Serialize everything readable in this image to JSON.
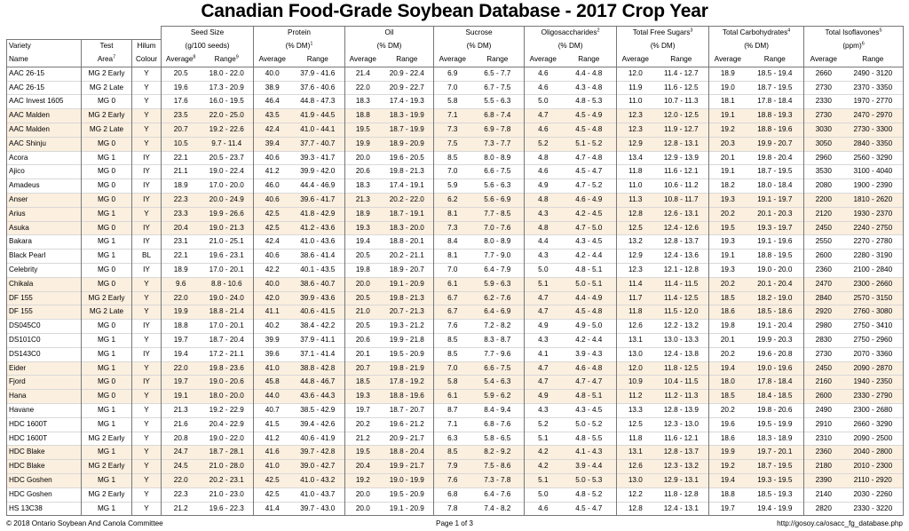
{
  "title": "Canadian Food-Grade Soybean Database - 2017 Crop Year",
  "headers": {
    "variety_1": "Variety",
    "variety_2": "Name",
    "test_1": "Test",
    "test_2": "Area",
    "test_sup": "7",
    "hilum_1": "Hilum",
    "hilum_2": "Colour",
    "groups": [
      {
        "name": "Seed Size",
        "sup": "",
        "unit": "(g/100 seeds)",
        "unit_sup": ""
      },
      {
        "name": "Protein",
        "sup": "",
        "unit": "(% DM)",
        "unit_sup": "1"
      },
      {
        "name": "Oil",
        "sup": "",
        "unit": "(% DM)",
        "unit_sup": ""
      },
      {
        "name": "Sucrose",
        "sup": "",
        "unit": "(% DM)",
        "unit_sup": ""
      },
      {
        "name": "Oligosaccharides",
        "sup": "2",
        "unit": "(% DM)",
        "unit_sup": ""
      },
      {
        "name": "Total Free Sugars",
        "sup": "3",
        "unit": "(% DM)",
        "unit_sup": ""
      },
      {
        "name": "Total Carbohydrates",
        "sup": "4",
        "unit": "(% DM)",
        "unit_sup": ""
      },
      {
        "name": "Total Isoflavones",
        "sup": "5",
        "unit": "(ppm)",
        "unit_sup": "6"
      }
    ],
    "sub": [
      {
        "avg": "Average",
        "avg_sup": "8",
        "range": "Range",
        "range_sup": "9"
      },
      {
        "avg": "Average",
        "avg_sup": "",
        "range": "Range",
        "range_sup": ""
      },
      {
        "avg": "Average",
        "avg_sup": "",
        "range": "Range",
        "range_sup": ""
      },
      {
        "avg": "Average",
        "avg_sup": "",
        "range": "Range",
        "range_sup": ""
      },
      {
        "avg": "Average",
        "avg_sup": "",
        "range": "Range",
        "range_sup": ""
      },
      {
        "avg": "Average",
        "avg_sup": "",
        "range": "Range",
        "range_sup": ""
      },
      {
        "avg": "Average",
        "avg_sup": "",
        "range": "Range",
        "range_sup": ""
      },
      {
        "avg": "Average",
        "avg_sup": "",
        "range": "Range",
        "range_sup": ""
      }
    ]
  },
  "rows": [
    {
      "hl": false,
      "c": [
        "AAC 26-15",
        "MG 2 Early",
        "Y",
        "20.5",
        "18.0 - 22.0",
        "40.0",
        "37.9 - 41.6",
        "21.4",
        "20.9 - 22.4",
        "6.9",
        "6.5 - 7.7",
        "4.6",
        "4.4 - 4.8",
        "12.0",
        "11.4 - 12.7",
        "18.9",
        "18.5 - 19.4",
        "2660",
        "2490 - 3120"
      ]
    },
    {
      "hl": false,
      "c": [
        "AAC 26-15",
        "MG 2 Late",
        "Y",
        "19.6",
        "17.3 - 20.9",
        "38.9",
        "37.6 - 40.6",
        "22.0",
        "20.9 - 22.7",
        "7.0",
        "6.7 - 7.5",
        "4.6",
        "4.3 - 4.8",
        "11.9",
        "11.6 - 12.5",
        "19.0",
        "18.7 - 19.5",
        "2730",
        "2370 - 3350"
      ]
    },
    {
      "hl": false,
      "c": [
        "AAC Invest 1605",
        "MG 0",
        "Y",
        "17.6",
        "16.0 - 19.5",
        "46.4",
        "44.8 - 47.3",
        "18.3",
        "17.4 - 19.3",
        "5.8",
        "5.5 - 6.3",
        "5.0",
        "4.8 - 5.3",
        "11.0",
        "10.7 - 11.3",
        "18.1",
        "17.8 - 18.4",
        "2330",
        "1970 - 2770"
      ]
    },
    {
      "hl": true,
      "c": [
        "AAC Malden",
        "MG 2 Early",
        "Y",
        "23.5",
        "22.0 - 25.0",
        "43.5",
        "41.9 - 44.5",
        "18.8",
        "18.3 - 19.9",
        "7.1",
        "6.8 - 7.4",
        "4.7",
        "4.5 - 4.9",
        "12.3",
        "12.0 - 12.5",
        "19.1",
        "18.8 - 19.3",
        "2730",
        "2470 - 2970"
      ]
    },
    {
      "hl": true,
      "c": [
        "AAC Malden",
        "MG 2 Late",
        "Y",
        "20.7",
        "19.2 - 22.6",
        "42.4",
        "41.0 - 44.1",
        "19.5",
        "18.7 - 19.9",
        "7.3",
        "6.9 - 7.8",
        "4.6",
        "4.5 - 4.8",
        "12.3",
        "11.9 - 12.7",
        "19.2",
        "18.8 - 19.6",
        "3030",
        "2730 - 3300"
      ]
    },
    {
      "hl": true,
      "c": [
        "AAC Shinju",
        "MG 0",
        "Y",
        "10.5",
        "9.7 - 11.4",
        "39.4",
        "37.7 - 40.7",
        "19.9",
        "18.9 - 20.9",
        "7.5",
        "7.3 - 7.7",
        "5.2",
        "5.1 - 5.2",
        "12.9",
        "12.8 - 13.1",
        "20.3",
        "19.9 - 20.7",
        "3050",
        "2840 - 3350"
      ]
    },
    {
      "hl": false,
      "c": [
        "Acora",
        "MG 1",
        "IY",
        "22.1",
        "20.5 - 23.7",
        "40.6",
        "39.3 - 41.7",
        "20.0",
        "19.6 - 20.5",
        "8.5",
        "8.0 - 8.9",
        "4.8",
        "4.7 - 4.8",
        "13.4",
        "12.9 - 13.9",
        "20.1",
        "19.8 - 20.4",
        "2960",
        "2560 - 3290"
      ]
    },
    {
      "hl": false,
      "c": [
        "Ajico",
        "MG 0",
        "IY",
        "21.1",
        "19.0 - 22.4",
        "41.2",
        "39.9 - 42.0",
        "20.6",
        "19.8 - 21.3",
        "7.0",
        "6.6 - 7.5",
        "4.6",
        "4.5 - 4.7",
        "11.8",
        "11.6 - 12.1",
        "19.1",
        "18.7 - 19.5",
        "3530",
        "3100 - 4040"
      ]
    },
    {
      "hl": false,
      "c": [
        "Amadeus",
        "MG 0",
        "IY",
        "18.9",
        "17.0 - 20.0",
        "46.0",
        "44.4 - 46.9",
        "18.3",
        "17.4 - 19.1",
        "5.9",
        "5.6 - 6.3",
        "4.9",
        "4.7 - 5.2",
        "11.0",
        "10.6 - 11.2",
        "18.2",
        "18.0 - 18.4",
        "2080",
        "1900 - 2390"
      ]
    },
    {
      "hl": true,
      "c": [
        "Anser",
        "MG 0",
        "IY",
        "22.3",
        "20.0 - 24.9",
        "40.6",
        "39.6 - 41.7",
        "21.3",
        "20.2 - 22.0",
        "6.2",
        "5.6 - 6.9",
        "4.8",
        "4.6 - 4.9",
        "11.3",
        "10.8 - 11.7",
        "19.3",
        "19.1 - 19.7",
        "2200",
        "1810 - 2620"
      ]
    },
    {
      "hl": true,
      "c": [
        "Arius",
        "MG 1",
        "Y",
        "23.3",
        "19.9 - 26.6",
        "42.5",
        "41.8 - 42.9",
        "18.9",
        "18.7 - 19.1",
        "8.1",
        "7.7 - 8.5",
        "4.3",
        "4.2 - 4.5",
        "12.8",
        "12.6 - 13.1",
        "20.2",
        "20.1 - 20.3",
        "2120",
        "1930 - 2370"
      ]
    },
    {
      "hl": true,
      "c": [
        "Asuka",
        "MG 0",
        "IY",
        "20.4",
        "19.0 - 21.3",
        "42.5",
        "41.2 - 43.6",
        "19.3",
        "18.3 - 20.0",
        "7.3",
        "7.0 - 7.6",
        "4.8",
        "4.7 - 5.0",
        "12.5",
        "12.4 - 12.6",
        "19.5",
        "19.3 - 19.7",
        "2450",
        "2240 - 2750"
      ]
    },
    {
      "hl": false,
      "c": [
        "Bakara",
        "MG 1",
        "IY",
        "23.1",
        "21.0 - 25.1",
        "42.4",
        "41.0 - 43.6",
        "19.4",
        "18.8 - 20.1",
        "8.4",
        "8.0 - 8.9",
        "4.4",
        "4.3 - 4.5",
        "13.2",
        "12.8 - 13.7",
        "19.3",
        "19.1 - 19.6",
        "2550",
        "2270 - 2780"
      ]
    },
    {
      "hl": false,
      "c": [
        "Black Pearl",
        "MG 1",
        "BL",
        "22.1",
        "19.6 - 23.1",
        "40.6",
        "38.6 - 41.4",
        "20.5",
        "20.2 - 21.1",
        "8.1",
        "7.7 - 9.0",
        "4.3",
        "4.2 - 4.4",
        "12.9",
        "12.4 - 13.6",
        "19.1",
        "18.8 - 19.5",
        "2600",
        "2280 - 3190"
      ]
    },
    {
      "hl": false,
      "c": [
        "Celebrity",
        "MG 0",
        "IY",
        "18.9",
        "17.0 - 20.1",
        "42.2",
        "40.1 - 43.5",
        "19.8",
        "18.9 - 20.7",
        "7.0",
        "6.4 - 7.9",
        "5.0",
        "4.8 - 5.1",
        "12.3",
        "12.1 - 12.8",
        "19.3",
        "19.0 - 20.0",
        "2360",
        "2100 - 2840"
      ]
    },
    {
      "hl": true,
      "c": [
        "Chikala",
        "MG 0",
        "Y",
        "9.6",
        "8.8 - 10.6",
        "40.0",
        "38.6 - 40.7",
        "20.0",
        "19.1 - 20.9",
        "6.1",
        "5.9 - 6.3",
        "5.1",
        "5.0 - 5.1",
        "11.4",
        "11.4 - 11.5",
        "20.2",
        "20.1 - 20.4",
        "2470",
        "2300 - 2660"
      ]
    },
    {
      "hl": true,
      "c": [
        "DF 155",
        "MG 2 Early",
        "Y",
        "22.0",
        "19.0 - 24.0",
        "42.0",
        "39.9 - 43.6",
        "20.5",
        "19.8 - 21.3",
        "6.7",
        "6.2 - 7.6",
        "4.7",
        "4.4 - 4.9",
        "11.7",
        "11.4 - 12.5",
        "18.5",
        "18.2 - 19.0",
        "2840",
        "2570 - 3150"
      ]
    },
    {
      "hl": true,
      "c": [
        "DF 155",
        "MG 2 Late",
        "Y",
        "19.9",
        "18.8 - 21.4",
        "41.1",
        "40.6 - 41.5",
        "21.0",
        "20.7 - 21.3",
        "6.7",
        "6.4 - 6.9",
        "4.7",
        "4.5 - 4.8",
        "11.8",
        "11.5 - 12.0",
        "18.6",
        "18.5 - 18.6",
        "2920",
        "2760 - 3080"
      ]
    },
    {
      "hl": false,
      "c": [
        "DS045C0",
        "MG 0",
        "IY",
        "18.8",
        "17.0 - 20.1",
        "40.2",
        "38.4 - 42.2",
        "20.5",
        "19.3 - 21.2",
        "7.6",
        "7.2 - 8.2",
        "4.9",
        "4.9 - 5.0",
        "12.6",
        "12.2 - 13.2",
        "19.8",
        "19.1 - 20.4",
        "2980",
        "2750 - 3410"
      ]
    },
    {
      "hl": false,
      "c": [
        "DS101C0",
        "MG 1",
        "Y",
        "19.7",
        "18.7 - 20.4",
        "39.9",
        "37.9 - 41.1",
        "20.6",
        "19.9 - 21.8",
        "8.5",
        "8.3 - 8.7",
        "4.3",
        "4.2 - 4.4",
        "13.1",
        "13.0 - 13.3",
        "20.1",
        "19.9 - 20.3",
        "2830",
        "2750 - 2960"
      ]
    },
    {
      "hl": false,
      "c": [
        "DS143C0",
        "MG 1",
        "IY",
        "19.4",
        "17.2 - 21.1",
        "39.6",
        "37.1 - 41.4",
        "20.1",
        "19.5 - 20.9",
        "8.5",
        "7.7 - 9.6",
        "4.1",
        "3.9 - 4.3",
        "13.0",
        "12.4 - 13.8",
        "20.2",
        "19.6 - 20.8",
        "2730",
        "2070 - 3360"
      ]
    },
    {
      "hl": true,
      "c": [
        "Eider",
        "MG 1",
        "Y",
        "22.0",
        "19.8 - 23.6",
        "41.0",
        "38.8 - 42.8",
        "20.7",
        "19.8 - 21.9",
        "7.0",
        "6.6 - 7.5",
        "4.7",
        "4.6 - 4.8",
        "12.0",
        "11.8 - 12.5",
        "19.4",
        "19.0 - 19.6",
        "2450",
        "2090 - 2870"
      ]
    },
    {
      "hl": true,
      "c": [
        "Fjord",
        "MG 0",
        "IY",
        "19.7",
        "19.0 - 20.6",
        "45.8",
        "44.8 - 46.7",
        "18.5",
        "17.8 - 19.2",
        "5.8",
        "5.4 - 6.3",
        "4.7",
        "4.7 - 4.7",
        "10.9",
        "10.4 - 11.5",
        "18.0",
        "17.8 - 18.4",
        "2160",
        "1940 - 2350"
      ]
    },
    {
      "hl": true,
      "c": [
        "Hana",
        "MG 0",
        "Y",
        "19.1",
        "18.0 - 20.0",
        "44.0",
        "43.6 - 44.3",
        "19.3",
        "18.8 - 19.6",
        "6.1",
        "5.9 - 6.2",
        "4.9",
        "4.8 - 5.1",
        "11.2",
        "11.2 - 11.3",
        "18.5",
        "18.4 - 18.5",
        "2600",
        "2330 - 2790"
      ]
    },
    {
      "hl": false,
      "c": [
        "Havane",
        "MG 1",
        "Y",
        "21.3",
        "19.2 - 22.9",
        "40.7",
        "38.5 - 42.9",
        "19.7",
        "18.7 - 20.7",
        "8.7",
        "8.4 - 9.4",
        "4.3",
        "4.3 - 4.5",
        "13.3",
        "12.8 - 13.9",
        "20.2",
        "19.8 - 20.6",
        "2490",
        "2300 - 2680"
      ]
    },
    {
      "hl": false,
      "c": [
        "HDC 1600T",
        "MG 1",
        "Y",
        "21.6",
        "20.4 - 22.9",
        "41.5",
        "39.4 - 42.6",
        "20.2",
        "19.6 - 21.2",
        "7.1",
        "6.8 - 7.6",
        "5.2",
        "5.0 - 5.2",
        "12.5",
        "12.3 - 13.0",
        "19.6",
        "19.5 - 19.9",
        "2910",
        "2660 - 3290"
      ]
    },
    {
      "hl": false,
      "c": [
        "HDC 1600T",
        "MG 2 Early",
        "Y",
        "20.8",
        "19.0 - 22.0",
        "41.2",
        "40.6 - 41.9",
        "21.2",
        "20.9 - 21.7",
        "6.3",
        "5.8 - 6.5",
        "5.1",
        "4.8 - 5.5",
        "11.8",
        "11.6 - 12.1",
        "18.6",
        "18.3 - 18.9",
        "2310",
        "2090 - 2500"
      ]
    },
    {
      "hl": true,
      "c": [
        "HDC Blake",
        "MG 1",
        "Y",
        "24.7",
        "18.7 - 28.1",
        "41.6",
        "39.7 - 42.8",
        "19.5",
        "18.8 - 20.4",
        "8.5",
        "8.2 - 9.2",
        "4.2",
        "4.1 - 4.3",
        "13.1",
        "12.8 - 13.7",
        "19.9",
        "19.7 - 20.1",
        "2360",
        "2040 - 2800"
      ]
    },
    {
      "hl": true,
      "c": [
        "HDC Blake",
        "MG 2 Early",
        "Y",
        "24.5",
        "21.0 - 28.0",
        "41.0",
        "39.0 - 42.7",
        "20.4",
        "19.9 - 21.7",
        "7.9",
        "7.5 - 8.6",
        "4.2",
        "3.9 - 4.4",
        "12.6",
        "12.3 - 13.2",
        "19.2",
        "18.7 - 19.5",
        "2180",
        "2010 - 2300"
      ]
    },
    {
      "hl": true,
      "c": [
        "HDC Goshen",
        "MG 1",
        "Y",
        "22.0",
        "20.2 - 23.1",
        "42.5",
        "41.0 - 43.2",
        "19.2",
        "19.0 - 19.9",
        "7.6",
        "7.3 - 7.8",
        "5.1",
        "5.0 - 5.3",
        "13.0",
        "12.9 - 13.1",
        "19.4",
        "19.3 - 19.5",
        "2390",
        "2110 - 2920"
      ]
    },
    {
      "hl": false,
      "c": [
        "HDC Goshen",
        "MG 2 Early",
        "Y",
        "22.3",
        "21.0 - 23.0",
        "42.5",
        "41.0 - 43.7",
        "20.0",
        "19.5 - 20.9",
        "6.8",
        "6.4 - 7.6",
        "5.0",
        "4.8 - 5.2",
        "12.2",
        "11.8 - 12.8",
        "18.8",
        "18.5 - 19.3",
        "2140",
        "2030 - 2260"
      ]
    },
    {
      "hl": false,
      "c": [
        "HS 13C38",
        "MG 1",
        "Y",
        "21.2",
        "19.6 - 22.3",
        "41.4",
        "39.7 - 43.0",
        "20.0",
        "19.1 - 20.9",
        "7.8",
        "7.4 - 8.2",
        "4.6",
        "4.5 - 4.7",
        "12.8",
        "12.4 - 13.1",
        "19.7",
        "19.4 - 19.9",
        "2820",
        "2330 - 3220"
      ]
    }
  ],
  "footer": {
    "left": "© 2018 Ontario Soybean And Canola Committee",
    "center": "Page 1 of 3",
    "right": "http://gosoy.ca/osacc_fg_database.php"
  }
}
